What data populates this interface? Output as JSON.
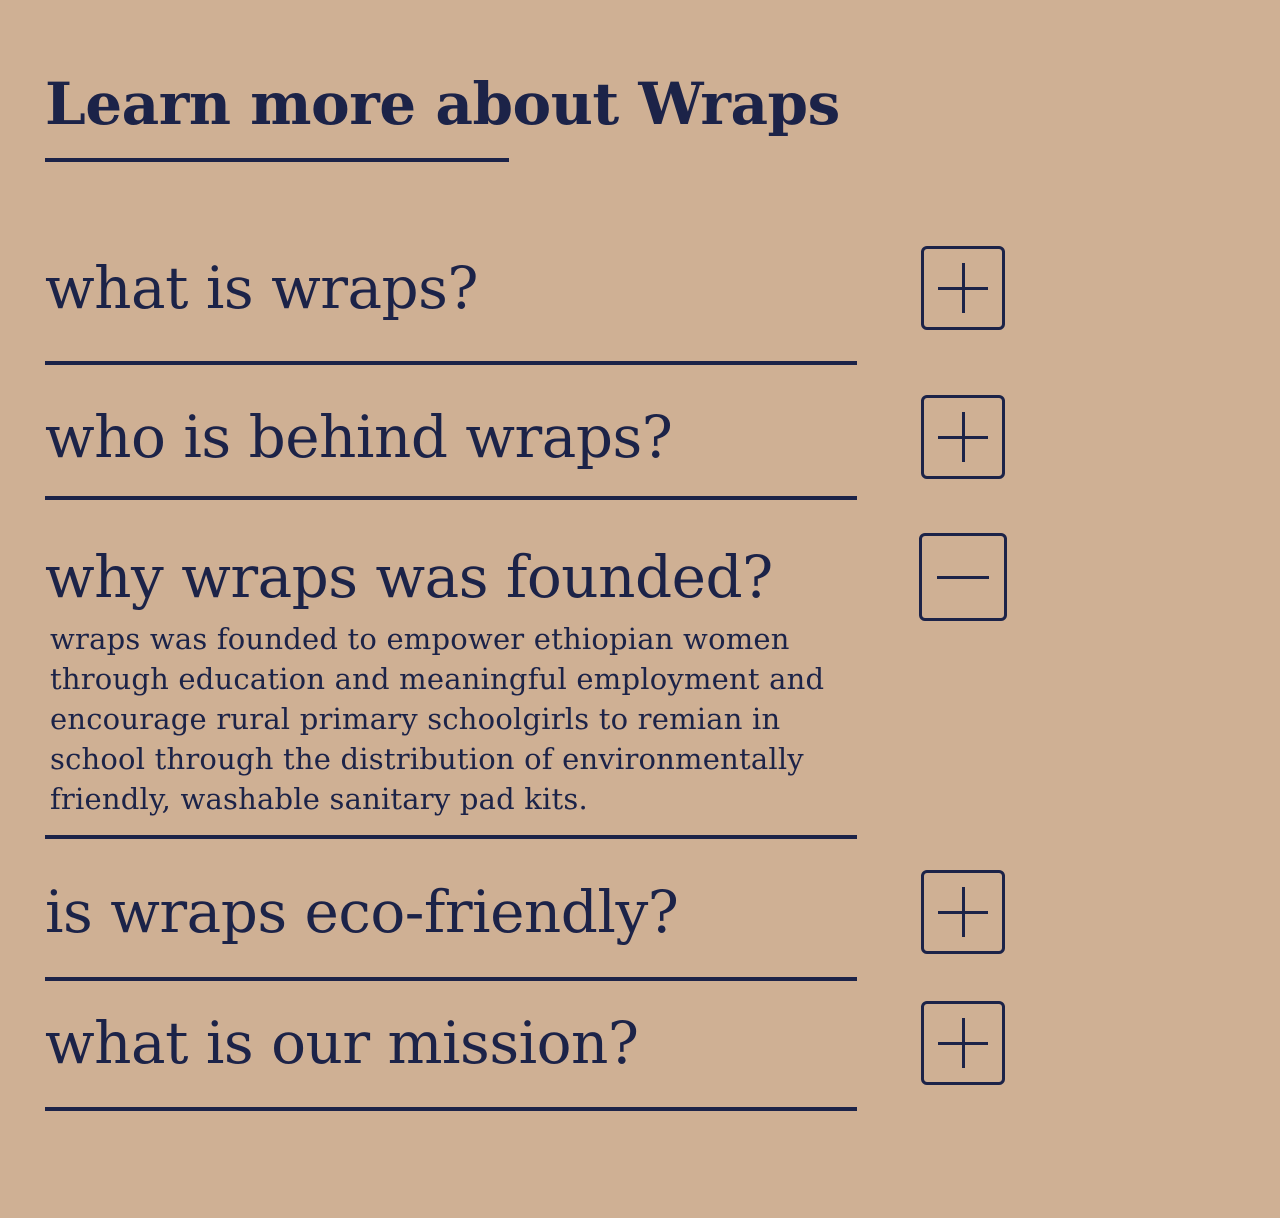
{
  "section": {
    "title": "Learn more about Wraps"
  },
  "faq": {
    "items": [
      {
        "question": "what is wraps?",
        "expanded": false,
        "toggle_icon": "plus-icon"
      },
      {
        "question": "who is behind wraps?",
        "expanded": false,
        "toggle_icon": "plus-icon"
      },
      {
        "question": "why wraps was founded?",
        "expanded": true,
        "toggle_icon": "minus-icon",
        "answer": "wraps was founded to empower ethiopian women through education and meaningful employment and encourage rural primary schoolgirls to remian in school through the distribution of environmentally friendly, washable sanitary pad kits."
      },
      {
        "question": "is wraps eco-friendly?",
        "expanded": false,
        "toggle_icon": "plus-icon"
      },
      {
        "question": "what is our mission?",
        "expanded": false,
        "toggle_icon": "plus-icon"
      }
    ]
  },
  "colors": {
    "background": "#cfb094",
    "ink": "#1c2348"
  }
}
